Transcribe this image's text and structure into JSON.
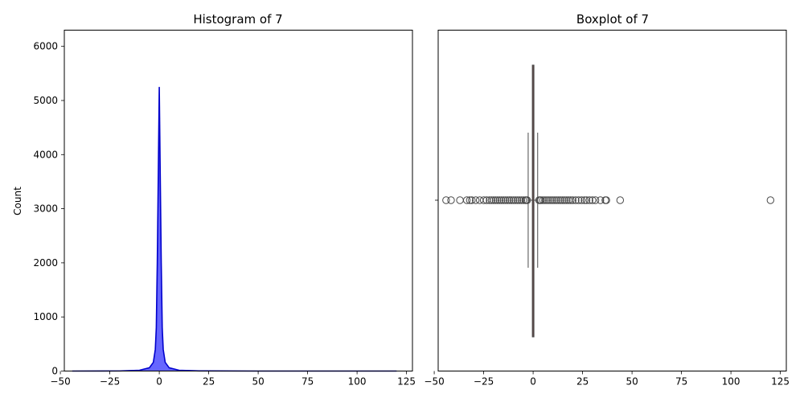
{
  "chart_data": [
    {
      "type": "area",
      "title": "Histogram of 7",
      "xlabel": "",
      "ylabel": "Count",
      "xlim": [
        -48,
        128
      ],
      "ylim": [
        0,
        6300
      ],
      "xticks": [
        -50,
        -25,
        0,
        25,
        50,
        75,
        100,
        125
      ],
      "yticks": [
        0,
        1000,
        2000,
        3000,
        4000,
        5000,
        6000
      ],
      "grid": false,
      "fill_color": "#0000ff",
      "line_color": "#0000cc",
      "series": [
        {
          "x": [
            -44,
            -20,
            -10,
            -5,
            -3,
            -2,
            -1.5,
            -1,
            -0.5,
            0,
            0.5,
            1,
            1.5,
            2,
            3,
            5,
            10,
            20,
            50,
            120
          ],
          "values": [
            0,
            2,
            15,
            60,
            160,
            400,
            800,
            2000,
            3600,
            5250,
            3600,
            2000,
            800,
            400,
            160,
            60,
            15,
            3,
            0,
            0
          ]
        }
      ]
    },
    {
      "type": "boxplot",
      "title": "Boxplot of 7",
      "xlabel": "",
      "ylabel": "",
      "xlim": [
        -48,
        128
      ],
      "xticks": [
        -50,
        -25,
        0,
        25,
        50,
        75,
        100,
        125
      ],
      "grid": false,
      "box_color": "#e0413d",
      "median_color": "#4a4a4a",
      "stats": {
        "q1": -0.4,
        "median": 0.0,
        "q3": 0.4,
        "whisker_low": -2.5,
        "whisker_high": 2.3
      },
      "outliers": [
        -44,
        -41.5,
        -37,
        -33.5,
        -32,
        -31,
        -29,
        -27,
        -25,
        -23.5,
        -22,
        -21,
        -20,
        -19,
        -18,
        -17,
        -16,
        -15,
        -14,
        -13,
        -12,
        -11,
        -10,
        -9,
        -8,
        -7,
        -6,
        -5,
        -4,
        -3.5,
        -3,
        3,
        3.5,
        4,
        5,
        6,
        7,
        8,
        9,
        10,
        11,
        12,
        13,
        14,
        15,
        16,
        17,
        18,
        19,
        20,
        21.5,
        23,
        24.5,
        26,
        27,
        28.5,
        30,
        31.5,
        34,
        36.5,
        37,
        44,
        120
      ]
    }
  ]
}
